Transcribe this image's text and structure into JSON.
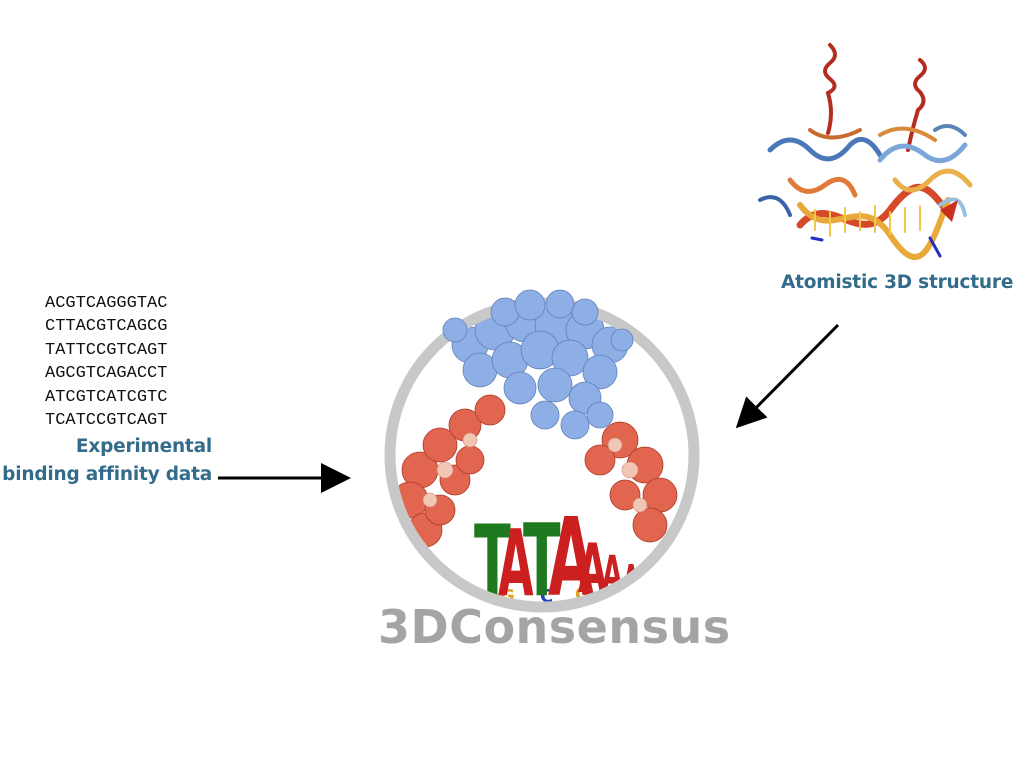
{
  "sequences": [
    "ACGTCAGGGTAC",
    "CTTACGTCAGCG",
    "TATTCCGTCAGT",
    "AGCGTCAGACCT",
    "ATCGTCATCGTC",
    "TCATCCGTCAGT"
  ],
  "labels": {
    "experimental_line1": "Experimental",
    "experimental_line2": "binding affinity data",
    "atomistic": "Atomistic 3D structure"
  },
  "logo": {
    "name": "3DConsensus",
    "motif_letters": [
      "T",
      "A",
      "T",
      "A",
      "A",
      "A",
      "A"
    ]
  },
  "colors": {
    "label": "#336b8a",
    "ring": "#c8c8c8",
    "logo_text": "#a4a4a4",
    "protein_blue": "#8eaee6",
    "dna_red": "#e2654f",
    "motif_T": "#1f7a1f",
    "motif_A": "#cc1f1f"
  }
}
